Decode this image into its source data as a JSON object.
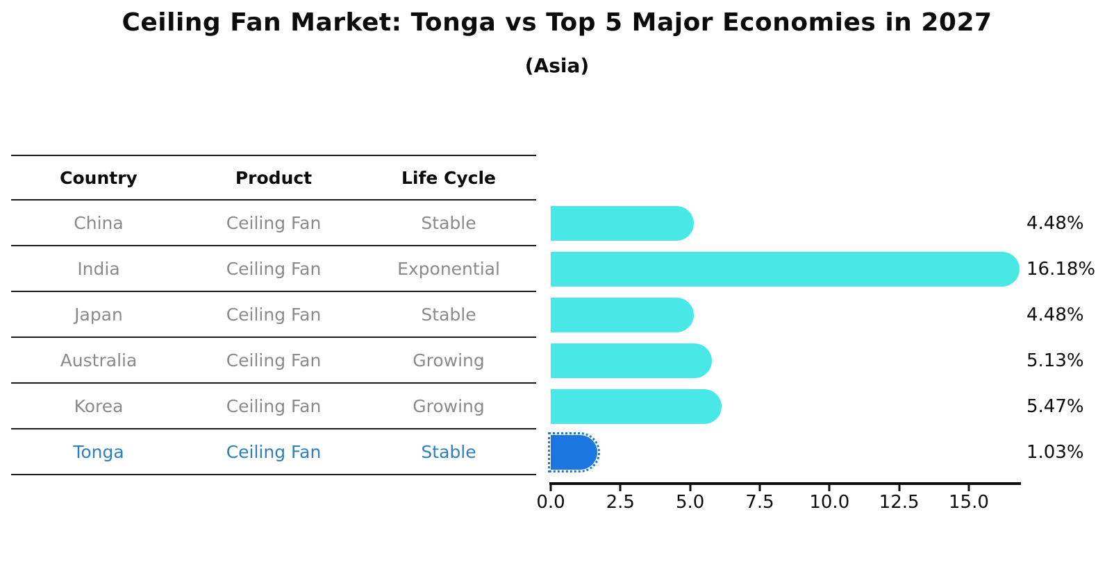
{
  "page": {
    "title": "Ceiling Fan Market: Tonga vs Top 5 Major Economies in 2027",
    "subtitle": "(Asia)"
  },
  "table": {
    "headers": [
      "Country",
      "Product",
      "Life Cycle"
    ],
    "rows": [
      {
        "country": "China",
        "product": "Ceiling Fan",
        "life_cycle": "Stable",
        "highlighted": false
      },
      {
        "country": "India",
        "product": "Ceiling Fan",
        "life_cycle": "Exponential",
        "highlighted": false
      },
      {
        "country": "Japan",
        "product": "Ceiling Fan",
        "life_cycle": "Stable",
        "highlighted": false
      },
      {
        "country": "Australia",
        "product": "Ceiling Fan",
        "life_cycle": "Growing",
        "highlighted": false
      },
      {
        "country": "Korea",
        "product": "Ceiling Fan",
        "life_cycle": "Growing",
        "highlighted": false
      },
      {
        "country": "Tonga",
        "product": "Ceiling Fan",
        "life_cycle": "Stable",
        "highlighted": true
      }
    ]
  },
  "chart_data": {
    "type": "bar",
    "orientation": "horizontal",
    "title": "Ceiling Fan Market: Tonga vs Top 5 Major Economies in 2027",
    "subtitle": "(Asia)",
    "categories": [
      "China",
      "India",
      "Japan",
      "Australia",
      "Korea",
      "Tonga"
    ],
    "values": [
      4.48,
      16.18,
      4.48,
      5.13,
      5.47,
      1.03
    ],
    "value_labels": [
      "4.48%",
      "16.18%",
      "4.48%",
      "5.13%",
      "5.47%",
      "1.03%"
    ],
    "xlabel": "",
    "ylabel": "",
    "xlim": [
      0,
      16.87
    ],
    "x_ticks": [
      0,
      2.5,
      5,
      7.5,
      10,
      12.5,
      15
    ],
    "x_tick_labels": [
      "0.0",
      "2.5",
      "5.0",
      "7.5",
      "10.0",
      "12.5",
      "15.0"
    ],
    "grid": false,
    "legend": false,
    "bar_color": "#48e8e6",
    "highlight_color": "#1b76e0",
    "highlight_category": "Tonga"
  },
  "colors": {
    "text_dark": "#0b0b0b",
    "text_gray": "#8a8a8a",
    "highlight_text": "#2d7fc4",
    "table_line": "#1a1a1a"
  }
}
